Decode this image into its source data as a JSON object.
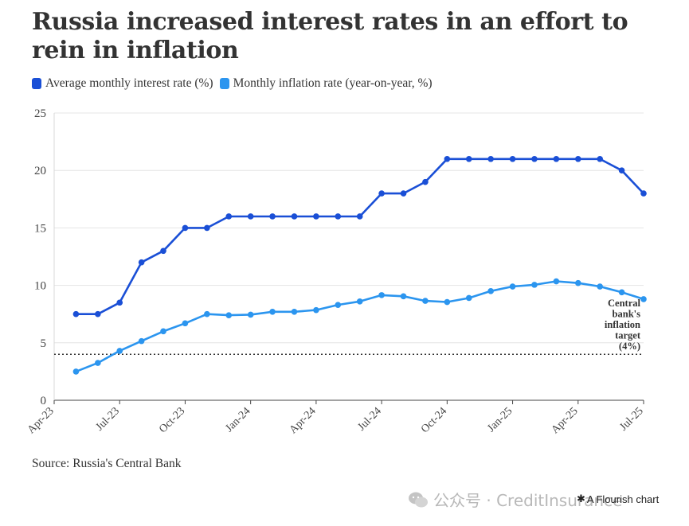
{
  "title": "Russia increased interest rates in an effort to rein in inflation",
  "source": "Source: Russia's Central Bank",
  "watermark": "公众号 · CreditInsurance",
  "flourish_label": "A Flourish chart",
  "flourish_icon": "asterisk-icon",
  "chart_data": {
    "type": "line",
    "title": "Russia increased interest rates in an effort to rein in inflation",
    "xlabel": "",
    "ylabel": "",
    "ylim": [
      0,
      25
    ],
    "yticks": [
      0,
      5,
      10,
      15,
      20,
      25
    ],
    "grid": true,
    "legend_position": "top-left",
    "xticks": [
      "Apr-23",
      "Jul-23",
      "Oct-23",
      "Jan-24",
      "Apr-24",
      "Jul-24",
      "Oct-24",
      "Jan-25",
      "Apr-25",
      "Jul-25"
    ],
    "x": [
      "2023-05",
      "2023-06",
      "2023-07",
      "2023-08",
      "2023-09",
      "2023-10",
      "2023-11",
      "2023-12",
      "2024-01",
      "2024-02",
      "2024-03",
      "2024-04",
      "2024-05",
      "2024-06",
      "2024-07",
      "2024-08",
      "2024-09",
      "2024-10",
      "2024-11",
      "2024-12",
      "2025-01",
      "2025-02",
      "2025-03",
      "2025-04",
      "2025-05",
      "2025-06",
      "2025-07"
    ],
    "series": [
      {
        "name": "Average monthly interest rate (%)",
        "color": "#1a4fd6",
        "values": [
          7.5,
          7.5,
          8.5,
          12,
          13,
          15,
          15,
          16,
          16,
          16,
          16,
          16,
          16,
          16,
          18,
          18,
          19,
          21,
          21,
          21,
          21,
          21,
          21,
          21,
          21,
          20,
          18
        ]
      },
      {
        "name": "Monthly inflation rate (year-on-year, %)",
        "color": "#2b95ef",
        "values": [
          2.5,
          3.25,
          4.3,
          5.15,
          6.0,
          6.7,
          7.5,
          7.4,
          7.45,
          7.7,
          7.7,
          7.85,
          8.3,
          8.6,
          9.15,
          9.05,
          8.65,
          8.55,
          8.9,
          9.5,
          9.9,
          10.05,
          10.35,
          10.2,
          9.9,
          9.4,
          8.8
        ]
      }
    ],
    "reference_line": {
      "value": 4,
      "label": [
        "Central",
        "bank's",
        "inflation",
        "target",
        "(4%)"
      ]
    }
  }
}
